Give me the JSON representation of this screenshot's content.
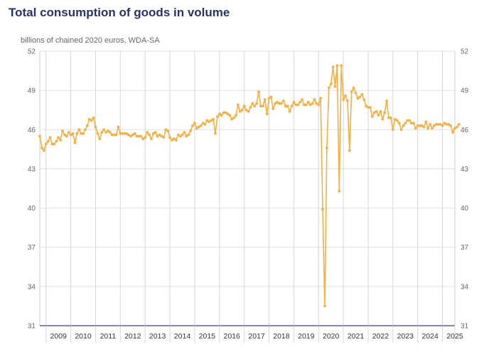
{
  "chart_data": {
    "type": "line",
    "title": "Total consumption of goods in volume",
    "ylabel": "billions of chained 2020 euros, WDA-SA",
    "xlabel": "",
    "ylim": [
      31,
      52
    ],
    "yticks": [
      52,
      49,
      46,
      43,
      40,
      37,
      34,
      31
    ],
    "xlim": [
      2008.75,
      2025.5
    ],
    "xtick_labels": [
      "2009",
      "2010",
      "2011",
      "2012",
      "2013",
      "2014",
      "2015",
      "2016",
      "2017",
      "2018",
      "2019",
      "2020",
      "2021",
      "2022",
      "2023",
      "2024",
      "2025"
    ],
    "line_color": "#f5b041",
    "axis_color": "#3b3bb0",
    "series": [
      {
        "name": "Total consumption of goods in volume",
        "start_year": 2008.75,
        "step": 0.0833333,
        "values": [
          45.5,
          44.6,
          44.4,
          44.9,
          45.1,
          45.4,
          44.9,
          44.9,
          45.1,
          45.4,
          45.2,
          45.9,
          45.6,
          45.5,
          45.8,
          45.6,
          45.7,
          45.0,
          45.7,
          46.0,
          45.7,
          45.7,
          46.0,
          46.3,
          46.8,
          46.7,
          46.9,
          46.2,
          45.7,
          45.3,
          45.8,
          46.0,
          45.8,
          45.9,
          45.8,
          45.6,
          45.6,
          45.6,
          46.2,
          45.7,
          45.7,
          45.7,
          45.7,
          45.6,
          45.5,
          45.6,
          45.7,
          45.5,
          45.5,
          45.5,
          45.3,
          45.4,
          45.8,
          45.6,
          45.3,
          45.7,
          45.8,
          45.5,
          45.6,
          45.5,
          45.4,
          46.0,
          45.9,
          45.4,
          45.2,
          45.3,
          45.2,
          45.6,
          45.5,
          45.6,
          45.8,
          45.5,
          45.6,
          45.9,
          46.3,
          46.5,
          46.1,
          46.2,
          46.3,
          46.5,
          46.4,
          46.7,
          46.6,
          46.7,
          46.8,
          45.7,
          47.0,
          47.2,
          47.1,
          47.3,
          47.3,
          47.2,
          47.1,
          46.8,
          46.9,
          47.1,
          47.9,
          47.4,
          47.5,
          47.8,
          47.5,
          47.4,
          47.7,
          48.0,
          47.8,
          48.0,
          48.9,
          47.8,
          47.8,
          48.3,
          47.2,
          48.4,
          48.5,
          47.6,
          48.0,
          48.1,
          48.0,
          48.0,
          48.2,
          47.8,
          47.8,
          47.4,
          47.8,
          48.1,
          47.9,
          47.9,
          48.1,
          48.3,
          47.9,
          47.9,
          48.1,
          47.9,
          48.0,
          48.3,
          48.0,
          47.9,
          48.4,
          39.9,
          32.5,
          44.6,
          49.2,
          49.5,
          50.8,
          49.3,
          50.9,
          41.3,
          50.9,
          48.3,
          48.6,
          48.2,
          44.4,
          48.9,
          49.2,
          48.8,
          48.4,
          48.5,
          48.7,
          48.3,
          47.8,
          47.7,
          47.7,
          47.0,
          47.3,
          47.4,
          47.1,
          47.4,
          46.8,
          47.3,
          48.2,
          46.9,
          46.9,
          46.0,
          46.8,
          46.7,
          46.5,
          46.0,
          46.3,
          46.5,
          46.7,
          46.7,
          46.5,
          46.5,
          46.1,
          46.3,
          46.3,
          46.3,
          46.2,
          46.6,
          46.1,
          46.4,
          46.1,
          46.3,
          46.4,
          46.4,
          46.4,
          46.3,
          46.5,
          46.4,
          46.4,
          46.3,
          45.8,
          46.1,
          46.2,
          46.4
        ]
      }
    ]
  }
}
